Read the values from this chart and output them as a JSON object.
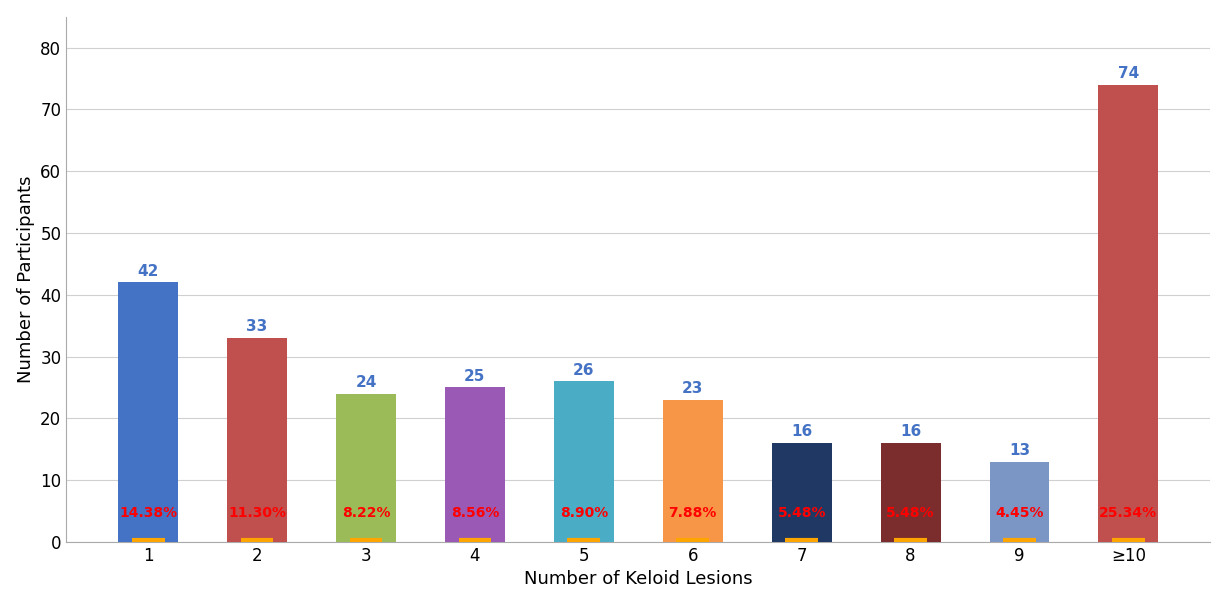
{
  "categories": [
    "1",
    "2",
    "3",
    "4",
    "5",
    "6",
    "7",
    "8",
    "9",
    "≥10"
  ],
  "values": [
    42,
    33,
    24,
    25,
    26,
    23,
    16,
    16,
    13,
    74
  ],
  "percentages": [
    "14.38%",
    "11.30%",
    "8.22%",
    "8.56%",
    "8.90%",
    "7.88%",
    "5.48%",
    "5.48%",
    "4.45%",
    "25.34%"
  ],
  "bar_colors": [
    "#4472C4",
    "#C0504D",
    "#9BBB59",
    "#9B59B6",
    "#4BACC6",
    "#F79646",
    "#1F3864",
    "#7B2C2C",
    "#7B96C4",
    "#C0504D"
  ],
  "xlabel": "Number of Keloid Lesions",
  "ylabel": "Number of Participants",
  "ylim": [
    0,
    85
  ],
  "yticks": [
    0,
    10,
    20,
    30,
    40,
    50,
    60,
    70,
    80
  ],
  "value_label_color": "#4472C4",
  "pct_label_color": "#FF0000",
  "value_fontsize": 11,
  "pct_fontsize": 10,
  "axis_label_fontsize": 13,
  "tick_fontsize": 12,
  "background_color": "#FFFFFF",
  "grid_color": "#D0D0D0",
  "orange_dash_color": "#FFA500"
}
